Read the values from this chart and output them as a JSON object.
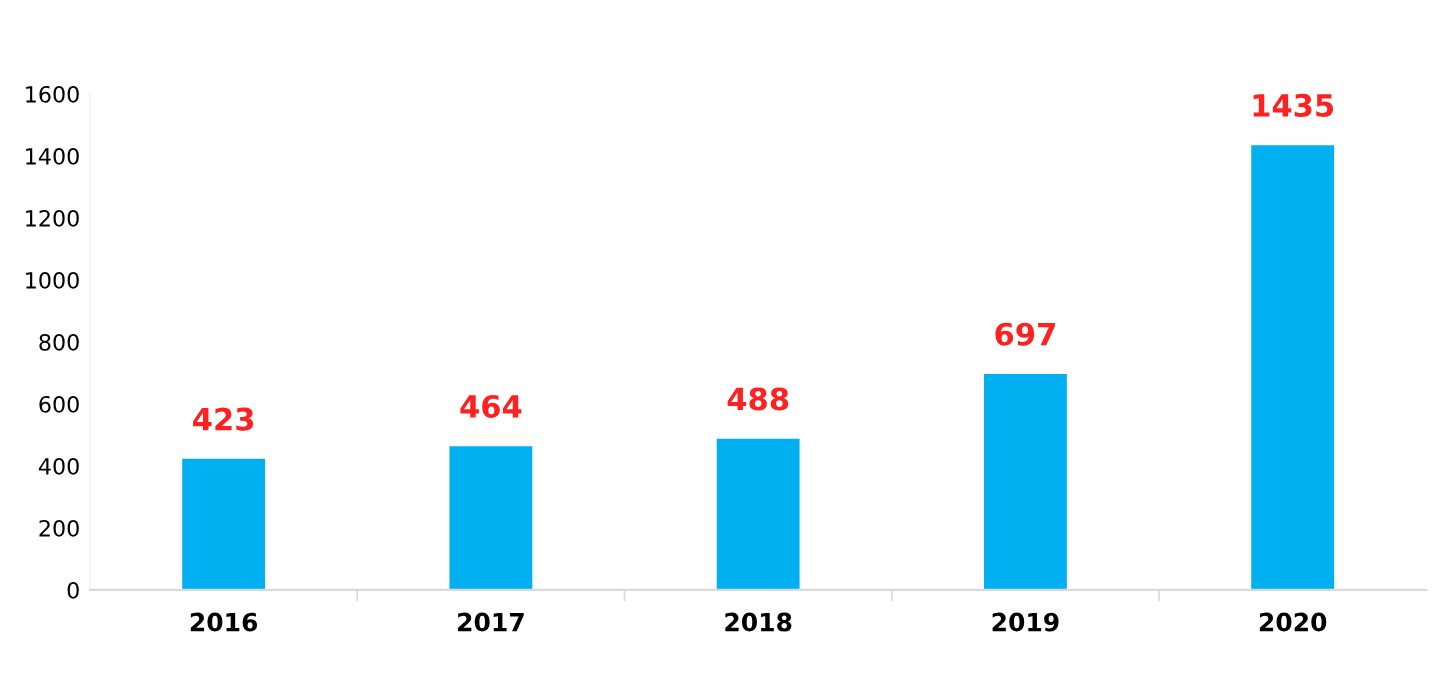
{
  "chart_data": {
    "type": "bar",
    "categories": [
      "2016",
      "2017",
      "2018",
      "2019",
      "2020"
    ],
    "values": [
      423,
      464,
      488,
      697,
      1435
    ],
    "color": "#00b0f0",
    "ylim": [
      0,
      1600
    ],
    "yticks": [
      0,
      200,
      400,
      600,
      800,
      1000,
      1200,
      1400,
      1600
    ],
    "grid": false,
    "legend": false,
    "data_labels": true
  }
}
